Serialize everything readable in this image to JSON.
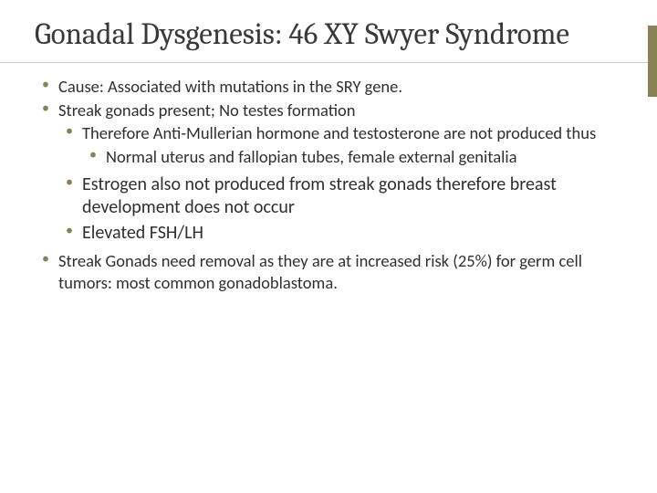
{
  "slide": {
    "title": "Gonadal Dysgenesis: 46 XY Swyer Syndrome",
    "title_fontsize": 33,
    "accent_color": "#8a8056",
    "text_color": "#2f2f2f",
    "background_color": "#ffffff",
    "bullets": {
      "b1": "Cause: Associated with mutations in the SRY gene.",
      "b2": "Streak gonads present; No testes formation",
      "b2a": "Therefore Anti-Mullerian hormone and testosterone are not produced thus",
      "b2a1": "Normal uterus and fallopian tubes, female external genitalia",
      "b2b": "Estrogen also not produced from streak gonads therefore breast development does not occur",
      "b2c": "Elevated FSH/LH",
      "b3": "Streak Gonads need removal as they are at increased risk (25%) for germ cell tumors: most common gonadoblastoma."
    }
  }
}
